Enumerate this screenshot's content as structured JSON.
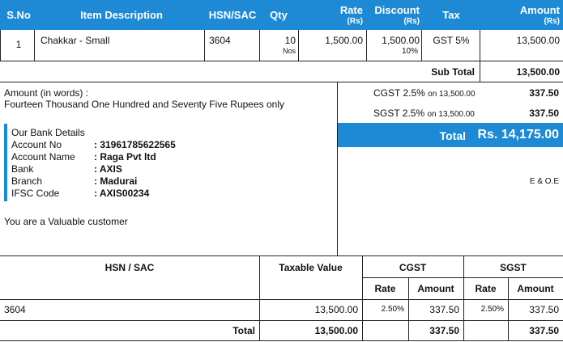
{
  "header": {
    "sno": "S.No",
    "item_description": "Item Description",
    "hsn_sac": "HSN/SAC",
    "qty": "Qty",
    "rate": "Rate",
    "rate_unit": "(Rs)",
    "discount": "Discount",
    "discount_unit": "(Rs)",
    "tax": "Tax",
    "amount": "Amount",
    "amount_unit": "(Rs)"
  },
  "items": [
    {
      "sno": "1",
      "description": "Chakkar - Small",
      "hsn_sac": "3604",
      "qty": "10",
      "qty_unit": "Nos",
      "rate": "1,500.00",
      "discount": "1,500.00",
      "discount_pct": "10%",
      "tax": "GST 5%",
      "amount": "13,500.00"
    }
  ],
  "subtotal": {
    "label": "Sub Total",
    "value": "13,500.00"
  },
  "amount_in_words": {
    "label": "Amount (in words) :",
    "value": "Fourteen Thousand One Hundred and Seventy Five Rupees only"
  },
  "taxes": [
    {
      "label": "CGST 2.5%",
      "on": "on 13,500.00",
      "value": "337.50"
    },
    {
      "label": "SGST 2.5%",
      "on": "on 13,500.00",
      "value": "337.50"
    }
  ],
  "total": {
    "label": "Total",
    "value": "Rs. 14,175.00"
  },
  "bank": {
    "title": "Our Bank Details",
    "rows": [
      {
        "label": "Account No",
        "value": ": 31961785622565"
      },
      {
        "label": "Account Name",
        "value": ": Raga Pvt ltd"
      },
      {
        "label": "Bank",
        "value": ": AXIS"
      },
      {
        "label": "Branch",
        "value": ": Madurai"
      },
      {
        "label": "IFSC Code",
        "value": ": AXIS00234"
      }
    ]
  },
  "eoe": "E & O.E",
  "note": "You are a Valuable customer",
  "hsn_summary": {
    "headers": {
      "hsn_sac": "HSN / SAC",
      "taxable_value": "Taxable Value",
      "cgst": "CGST",
      "sgst": "SGST",
      "rate": "Rate",
      "amount": "Amount"
    },
    "rows": [
      {
        "hsn_sac": "3604",
        "taxable_value": "13,500.00",
        "cgst_rate": "2.50%",
        "cgst_amount": "337.50",
        "sgst_rate": "2.50%",
        "sgst_amount": "337.50"
      }
    ],
    "total": {
      "label": "Total",
      "taxable_value": "13,500.00",
      "cgst_amount": "337.50",
      "sgst_amount": "337.50"
    }
  },
  "colors": {
    "accent": "#1e8ad6",
    "bank_bar": "#1e8ad6"
  }
}
